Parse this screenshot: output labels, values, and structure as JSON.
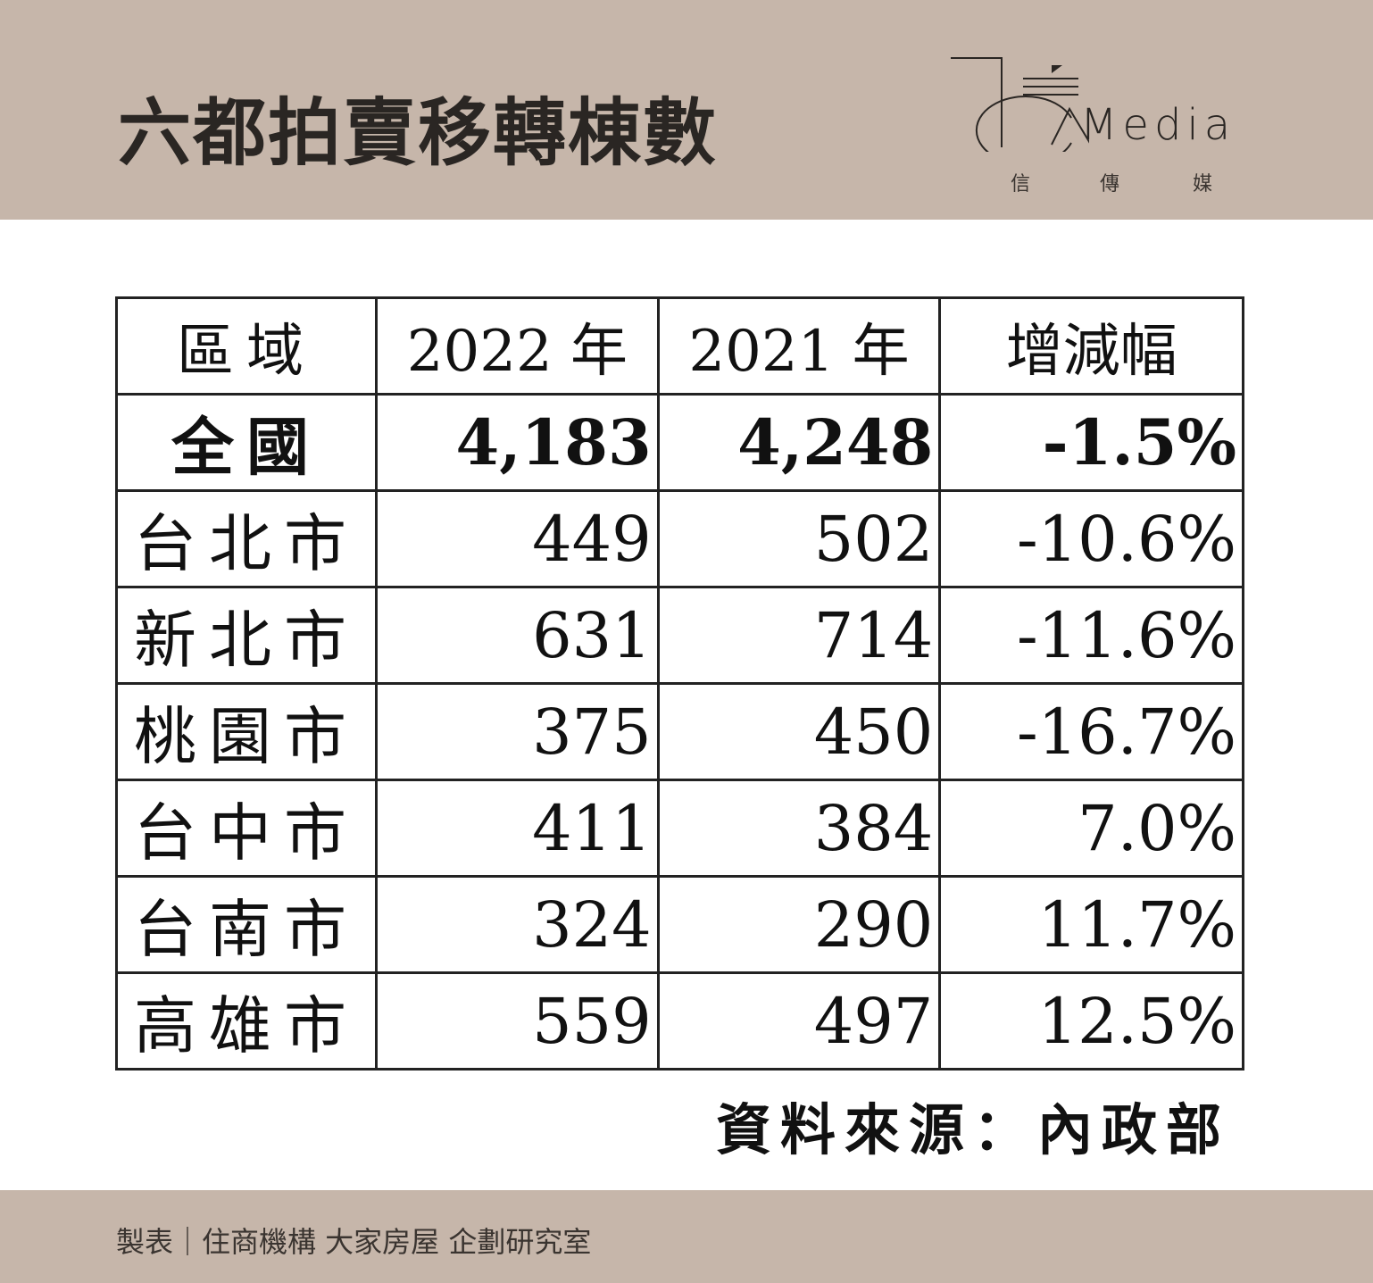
{
  "title": "六都拍賣移轉棟數",
  "logo": {
    "word": "Media",
    "chinese": [
      "信",
      "傳",
      "媒"
    ]
  },
  "table": {
    "headers": [
      "區域",
      "2022 年",
      "2021 年",
      "增減幅"
    ],
    "rows": [
      [
        "全國",
        "4,183",
        "4,248",
        "-1.5%"
      ],
      [
        "台北市",
        "449",
        "502",
        "-10.6%"
      ],
      [
        "新北市",
        "631",
        "714",
        "-11.6%"
      ],
      [
        "桃園市",
        "375",
        "450",
        "-16.7%"
      ],
      [
        "台中市",
        "411",
        "384",
        "7.0%"
      ],
      [
        "台南市",
        "324",
        "290",
        "11.7%"
      ],
      [
        "高雄市",
        "559",
        "497",
        "12.5%"
      ]
    ]
  },
  "source": "資料來源：內政部",
  "credit": "製表｜住商機構 大家房屋 企劃研究室",
  "colors": {
    "band": "#c6b6aa",
    "text": "#2a2623"
  }
}
